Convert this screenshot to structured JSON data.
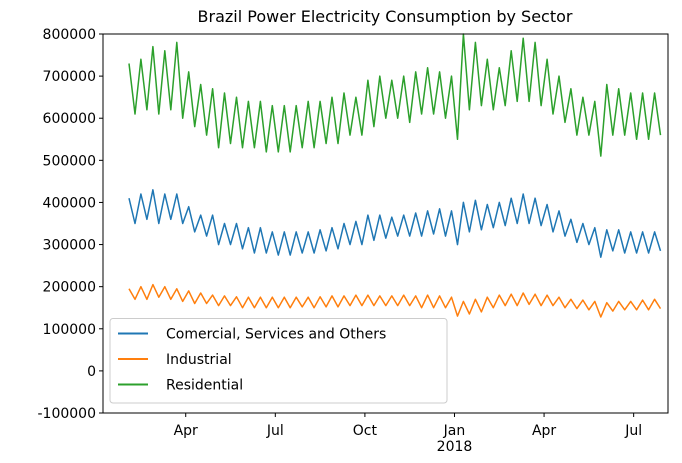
{
  "chart_data": {
    "type": "line",
    "title": "Brazil Power Electricity Consumption by Sector",
    "x": [
      1.1,
      1.3,
      1.5,
      1.7,
      1.9,
      2.1,
      2.3,
      2.5,
      2.7,
      2.9,
      3.1,
      3.3,
      3.5,
      3.7,
      3.9,
      4.1,
      4.3,
      4.5,
      4.7,
      4.9,
      5.1,
      5.3,
      5.5,
      5.7,
      5.9,
      6.1,
      6.3,
      6.5,
      6.7,
      6.9,
      7.1,
      7.3,
      7.5,
      7.7,
      7.9,
      8.1,
      8.3,
      8.5,
      8.7,
      8.9,
      9.1,
      9.3,
      9.5,
      9.7,
      9.9,
      10.1,
      10.3,
      10.5,
      10.7,
      10.9,
      11.1,
      11.3,
      11.5,
      11.7,
      11.9,
      12.1,
      12.3,
      12.5,
      12.7,
      12.9,
      13.1,
      13.3,
      13.5,
      13.7,
      13.9,
      14.1,
      14.3,
      14.5,
      14.7,
      14.9,
      15.1,
      15.3,
      15.5,
      15.7,
      15.9,
      16.1,
      16.3,
      16.5,
      16.7,
      16.9,
      17.1,
      17.3,
      17.5,
      17.7,
      17.9,
      18.1,
      18.3,
      18.5,
      18.7,
      18.9
    ],
    "series": [
      {
        "name": "Comercial, Services and Others",
        "color": "#1f77b4",
        "values": [
          410000,
          350000,
          420000,
          360000,
          430000,
          350000,
          420000,
          360000,
          420000,
          350000,
          390000,
          330000,
          370000,
          320000,
          370000,
          300000,
          350000,
          300000,
          350000,
          290000,
          340000,
          280000,
          340000,
          280000,
          330000,
          275000,
          330000,
          275000,
          330000,
          280000,
          330000,
          280000,
          335000,
          285000,
          340000,
          290000,
          350000,
          300000,
          355000,
          300000,
          370000,
          310000,
          370000,
          315000,
          365000,
          320000,
          370000,
          320000,
          375000,
          320000,
          380000,
          325000,
          385000,
          320000,
          380000,
          300000,
          400000,
          330000,
          405000,
          335000,
          395000,
          340000,
          400000,
          345000,
          410000,
          350000,
          420000,
          350000,
          410000,
          345000,
          395000,
          330000,
          380000,
          320000,
          360000,
          305000,
          350000,
          300000,
          340000,
          270000,
          335000,
          285000,
          335000,
          280000,
          330000,
          280000,
          330000,
          280000,
          330000,
          285000
        ]
      },
      {
        "name": "Industrial",
        "color": "#ff7f0e",
        "values": [
          195000,
          170000,
          200000,
          170000,
          205000,
          175000,
          200000,
          170000,
          195000,
          165000,
          190000,
          160000,
          185000,
          160000,
          180000,
          155000,
          178000,
          155000,
          176000,
          150000,
          175000,
          150000,
          175000,
          150000,
          175000,
          150000,
          175000,
          150000,
          175000,
          152000,
          175000,
          150000,
          176000,
          152000,
          178000,
          152000,
          178000,
          155000,
          180000,
          155000,
          180000,
          155000,
          178000,
          155000,
          178000,
          155000,
          180000,
          155000,
          178000,
          150000,
          180000,
          150000,
          178000,
          150000,
          175000,
          130000,
          165000,
          135000,
          170000,
          140000,
          175000,
          150000,
          180000,
          155000,
          182000,
          155000,
          185000,
          158000,
          182000,
          155000,
          180000,
          155000,
          175000,
          150000,
          170000,
          148000,
          168000,
          145000,
          165000,
          128000,
          162000,
          142000,
          165000,
          145000,
          165000,
          145000,
          168000,
          145000,
          170000,
          148000
        ]
      },
      {
        "name": "Residential",
        "color": "#2ca02c",
        "values": [
          730000,
          610000,
          740000,
          620000,
          770000,
          610000,
          760000,
          620000,
          780000,
          600000,
          710000,
          580000,
          680000,
          560000,
          670000,
          530000,
          660000,
          540000,
          650000,
          530000,
          640000,
          530000,
          640000,
          520000,
          630000,
          520000,
          630000,
          520000,
          630000,
          530000,
          640000,
          530000,
          640000,
          540000,
          650000,
          540000,
          660000,
          560000,
          650000,
          560000,
          690000,
          580000,
          700000,
          600000,
          690000,
          600000,
          700000,
          590000,
          710000,
          610000,
          720000,
          610000,
          710000,
          600000,
          700000,
          550000,
          800000,
          620000,
          780000,
          630000,
          740000,
          620000,
          720000,
          630000,
          760000,
          640000,
          790000,
          640000,
          780000,
          630000,
          740000,
          610000,
          700000,
          590000,
          670000,
          560000,
          650000,
          560000,
          640000,
          510000,
          680000,
          560000,
          670000,
          560000,
          660000,
          550000,
          660000,
          550000,
          660000,
          560000
        ]
      }
    ],
    "xlim": [
      0.23,
      19.15
    ],
    "xticks": [
      {
        "value": 3,
        "label": "Apr"
      },
      {
        "value": 6,
        "label": "Jul"
      },
      {
        "value": 9,
        "label": "Oct"
      },
      {
        "value": 12,
        "label": "Jan\n2018"
      },
      {
        "value": 15,
        "label": "Apr"
      },
      {
        "value": 18,
        "label": "Jul"
      }
    ],
    "ylim": [
      -100000,
      800000
    ],
    "yticks": [
      -100000,
      0,
      100000,
      200000,
      300000,
      400000,
      500000,
      600000,
      700000,
      800000
    ],
    "legend": "lower left"
  }
}
